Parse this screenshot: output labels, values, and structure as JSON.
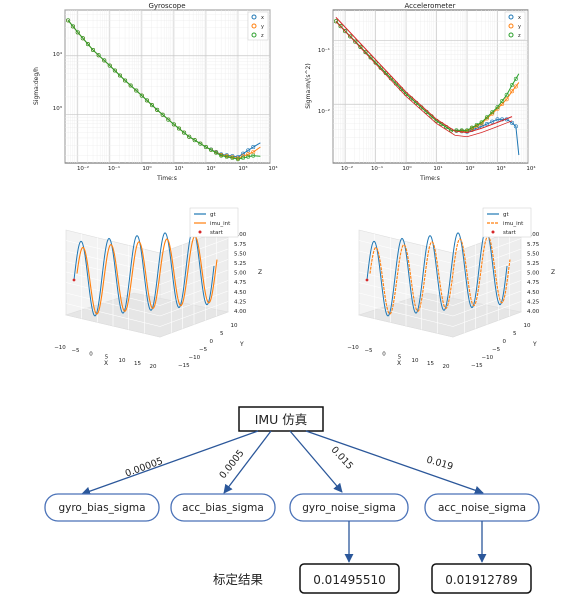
{
  "chart_data": [
    {
      "type": "line",
      "scale": "log-log",
      "title": "Gyroscope",
      "xlabel": "Time:s",
      "ylabel": "Sigma:deg/h",
      "xlim": [
        0.004,
        10000
      ],
      "ylim": [
        150,
        60000
      ],
      "xticks": [
        "10⁻²",
        "10⁻¹",
        "10⁰",
        "10¹",
        "10²",
        "10³",
        "10⁴"
      ],
      "yticks": [
        "10³",
        "10⁴"
      ],
      "legend": "top-right",
      "series": [
        {
          "name": "x",
          "x": [
            0.005,
            0.01,
            0.03,
            0.1,
            0.3,
            1,
            3,
            10,
            30,
            100,
            300,
            1000,
            3000,
            5000
          ],
          "y": [
            40000,
            25000,
            12500,
            6800,
            3800,
            2100,
            1200,
            680,
            420,
            280,
            210,
            190,
            280,
            330
          ]
        },
        {
          "name": "y",
          "x": [
            0.005,
            0.01,
            0.03,
            0.1,
            0.3,
            1,
            3,
            10,
            30,
            100,
            300,
            1000,
            3000,
            5000
          ],
          "y": [
            40000,
            25000,
            12500,
            6800,
            3800,
            2100,
            1200,
            680,
            420,
            280,
            205,
            180,
            230,
            280
          ]
        },
        {
          "name": "z",
          "x": [
            0.005,
            0.01,
            0.03,
            0.1,
            0.3,
            1,
            3,
            10,
            30,
            100,
            300,
            1000,
            3000,
            5000
          ],
          "y": [
            40000,
            25000,
            12500,
            6800,
            3800,
            2100,
            1200,
            680,
            420,
            280,
            200,
            175,
            200,
            195
          ]
        }
      ]
    },
    {
      "type": "line",
      "scale": "log-log",
      "title": "Accelerometer",
      "xlabel": "Time:s",
      "ylabel": "Sigma:m/(s^2)",
      "xlim": [
        0.004,
        10000
      ],
      "ylim": [
        0.0012,
        0.3
      ],
      "xticks": [
        "10⁻²",
        "10⁻¹",
        "10⁰",
        "10¹",
        "10²",
        "10³",
        "10⁴"
      ],
      "yticks": [
        "10⁻²",
        "10⁻¹"
      ],
      "legend": "top-right",
      "series": [
        {
          "name": "x",
          "x": [
            0.005,
            0.01,
            0.1,
            1,
            10,
            30,
            100,
            300,
            1000,
            2000,
            3000,
            4000,
            5000
          ],
          "y": [
            0.2,
            0.14,
            0.045,
            0.0145,
            0.0055,
            0.0039,
            0.0037,
            0.0045,
            0.0058,
            0.0058,
            0.0051,
            0.0045,
            0.0016
          ]
        },
        {
          "name": "y",
          "x": [
            0.005,
            0.01,
            0.1,
            1,
            10,
            30,
            100,
            300,
            1000,
            2000,
            3000,
            4000,
            5000
          ],
          "y": [
            0.2,
            0.14,
            0.045,
            0.0145,
            0.0055,
            0.0039,
            0.0038,
            0.005,
            0.0085,
            0.012,
            0.016,
            0.019,
            0.022
          ]
        },
        {
          "name": "z",
          "x": [
            0.005,
            0.01,
            0.1,
            1,
            10,
            30,
            100,
            300,
            1000,
            2000,
            3000,
            4000,
            5000
          ],
          "y": [
            0.2,
            0.14,
            0.045,
            0.0145,
            0.0055,
            0.0039,
            0.0039,
            0.0052,
            0.009,
            0.014,
            0.02,
            0.025,
            0.03
          ]
        }
      ]
    },
    {
      "type": "line",
      "projection": "3d",
      "xlabel": "X",
      "ylabel": "Y",
      "zlabel": "Z",
      "xticks": [
        "−10",
        "−5",
        "0",
        "5",
        "10",
        "15",
        "20"
      ],
      "yticks": [
        "−15",
        "−10",
        "−5",
        "0",
        "5",
        "10"
      ],
      "zticks": [
        "4.00",
        "4.25",
        "4.50",
        "4.75",
        "5.00",
        "5.25",
        "5.50",
        "5.75",
        "6.00"
      ],
      "legend": "top-right",
      "series": [
        {
          "name": "gt"
        },
        {
          "name": "imu_int"
        },
        {
          "name": "start"
        }
      ]
    },
    {
      "type": "line",
      "projection": "3d",
      "xlabel": "X",
      "ylabel": "Y",
      "zlabel": "Z",
      "xticks": [
        "−10",
        "−5",
        "0",
        "5",
        "10",
        "15",
        "20"
      ],
      "yticks": [
        "−15",
        "−10",
        "−5",
        "0",
        "5",
        "10"
      ],
      "zticks": [
        "4.00",
        "4.25",
        "4.50",
        "4.75",
        "5.00",
        "5.25",
        "5.50",
        "5.75",
        "6.00"
      ],
      "legend": "top-right",
      "series": [
        {
          "name": "gt"
        },
        {
          "name": "imu_int"
        },
        {
          "name": "start"
        }
      ]
    }
  ],
  "diagram": {
    "root": "IMU 仿真",
    "params": [
      {
        "name": "gyro_bias_sigma",
        "value": "0.00005"
      },
      {
        "name": "acc_bias_sigma",
        "value": "0.0005"
      },
      {
        "name": "gyro_noise_sigma",
        "value": "0.015"
      },
      {
        "name": "acc_noise_sigma",
        "value": "0.019"
      }
    ],
    "result_label": "标定结果",
    "results": [
      "0.01495510",
      "0.01912789"
    ]
  },
  "colors": {
    "x": "#1f77b4",
    "y": "#ff7f0e",
    "z": "#2ca02c",
    "red": "#d62728",
    "arrow": "#2b579a",
    "node_border": "#4a72b8"
  }
}
